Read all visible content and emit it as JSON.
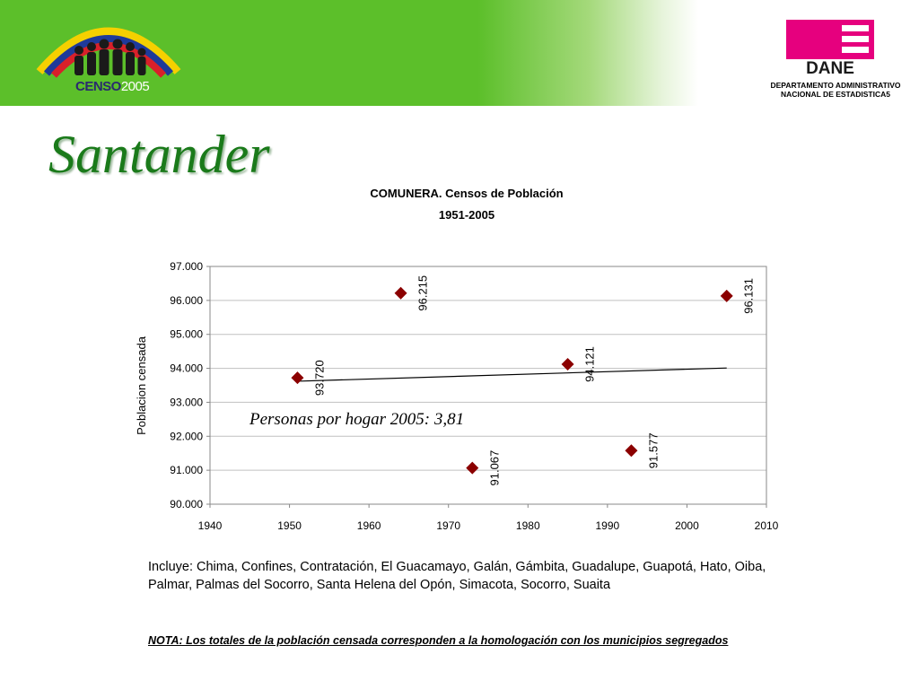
{
  "header": {
    "censo_logo_text": "CENSO",
    "censo_logo_year": "2005",
    "dane_logo_text": "DANE",
    "dane_caption_line1": "DEPARTAMENTO ADMINISTRATIVO",
    "dane_caption_line2": "NACIONAL DE ESTADISTICA5",
    "colors": {
      "banner_green": "#5cbf2a",
      "dane_magenta": "#e6007e",
      "title_green": "#1a7a1a"
    }
  },
  "page_title": "Santander",
  "chart_data": {
    "type": "scatter",
    "title": "COMUNERA. Censos de Población",
    "subtitle": "1951-2005",
    "ylabel": "Poblacion censada",
    "xlabel": "",
    "xlim": [
      1940,
      2010
    ],
    "ylim": [
      90000,
      97000
    ],
    "x_ticks": [
      1940,
      1950,
      1960,
      1970,
      1980,
      1990,
      2000,
      2010
    ],
    "x_tick_labels": [
      "1940",
      "1950",
      "1960",
      "1970",
      "1980",
      "1990",
      "2000",
      "2010"
    ],
    "y_ticks": [
      90000,
      91000,
      92000,
      93000,
      94000,
      95000,
      96000,
      97000
    ],
    "y_tick_labels": [
      "90.000",
      "91.000",
      "92.000",
      "93.000",
      "94.000",
      "95.000",
      "96.000",
      "97.000"
    ],
    "grid": true,
    "legend": "none",
    "marker_color": "#8b0000",
    "points": [
      {
        "x": 1951,
        "y": 93720,
        "label": "93.720"
      },
      {
        "x": 1964,
        "y": 96215,
        "label": "96.215"
      },
      {
        "x": 1973,
        "y": 91067,
        "label": "91.067"
      },
      {
        "x": 1985,
        "y": 94121,
        "label": "94.121"
      },
      {
        "x": 1993,
        "y": 91577,
        "label": "91.577"
      },
      {
        "x": 2005,
        "y": 96131,
        "label": "96.131"
      }
    ],
    "trendline": {
      "x": [
        1951,
        2005
      ],
      "y": [
        93620,
        94010
      ]
    },
    "annotation": "Personas por hogar 2005: 3,81"
  },
  "note": {
    "includes": "Incluye: Chima, Confines, Contratación, El Guacamayo, Galán, Gámbita, Guadalupe, Guapotá, Hato, Oiba, Palmar, Palmas del Socorro, Santa Helena del Opón, Simacota, Socorro, Suaita",
    "nota": "NOTA: Los totales de la población censada corresponden a la homologación con los municipios segregados"
  }
}
